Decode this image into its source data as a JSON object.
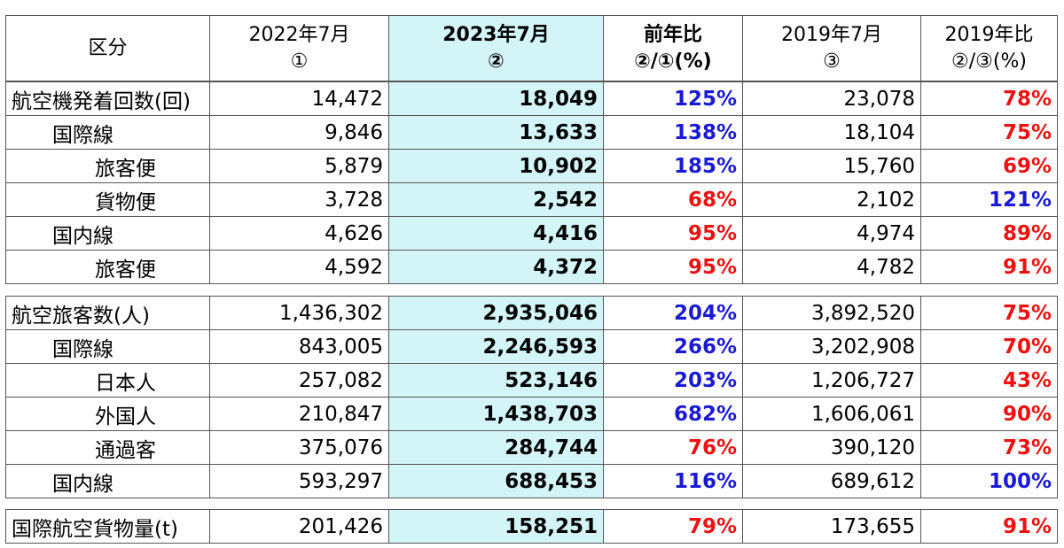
{
  "header": {
    "col_category": "区分",
    "col_2022": [
      "2022年7月",
      "①"
    ],
    "col_2023": [
      "2023年7月",
      "②"
    ],
    "col_yoy": [
      "前年比",
      "②/①(%)"
    ],
    "col_2019": [
      "2019年7月",
      "③"
    ],
    "col_vs2019": [
      "2019年比",
      "②/③(%)"
    ]
  },
  "flights": [
    {
      "label": "航空機発着回数(回)",
      "v2022": "14,472",
      "v2023": "18,049",
      "yoy": "125%",
      "yoy_color": "blue",
      "v2019": "23,078",
      "vs2019": "78%",
      "vs2019_color": "red"
    },
    {
      "label": "国際線",
      "v2022": "9,846",
      "v2023": "13,633",
      "yoy": "138%",
      "yoy_color": "blue",
      "v2019": "18,104",
      "vs2019": "75%",
      "vs2019_color": "red"
    },
    {
      "label": "旅客便",
      "v2022": "5,879",
      "v2023": "10,902",
      "yoy": "185%",
      "yoy_color": "blue",
      "v2019": "15,760",
      "vs2019": "69%",
      "vs2019_color": "red"
    },
    {
      "label": "貨物便",
      "v2022": "3,728",
      "v2023": "2,542",
      "yoy": "68%",
      "yoy_color": "red",
      "v2019": "2,102",
      "vs2019": "121%",
      "vs2019_color": "blue"
    },
    {
      "label": "国内線",
      "v2022": "4,626",
      "v2023": "4,416",
      "yoy": "95%",
      "yoy_color": "red",
      "v2019": "4,974",
      "vs2019": "89%",
      "vs2019_color": "red"
    },
    {
      "label": "旅客便",
      "v2022": "4,592",
      "v2023": "4,372",
      "yoy": "95%",
      "yoy_color": "red",
      "v2019": "4,782",
      "vs2019": "91%",
      "vs2019_color": "red"
    }
  ],
  "passengers": [
    {
      "label": "航空旅客数(人)",
      "v2022": "1,436,302",
      "v2023": "2,935,046",
      "yoy": "204%",
      "yoy_color": "blue",
      "v2019": "3,892,520",
      "vs2019": "75%",
      "vs2019_color": "red"
    },
    {
      "label": "国際線",
      "v2022": "843,005",
      "v2023": "2,246,593",
      "yoy": "266%",
      "yoy_color": "blue",
      "v2019": "3,202,908",
      "vs2019": "70%",
      "vs2019_color": "red"
    },
    {
      "label": "日本人",
      "v2022": "257,082",
      "v2023": "523,146",
      "yoy": "203%",
      "yoy_color": "blue",
      "v2019": "1,206,727",
      "vs2019": "43%",
      "vs2019_color": "red"
    },
    {
      "label": "外国人",
      "v2022": "210,847",
      "v2023": "1,438,703",
      "yoy": "682%",
      "yoy_color": "blue",
      "v2019": "1,606,061",
      "vs2019": "90%",
      "vs2019_color": "red"
    },
    {
      "label": "通過客",
      "v2022": "375,076",
      "v2023": "284,744",
      "yoy": "76%",
      "yoy_color": "red",
      "v2019": "390,120",
      "vs2019": "73%",
      "vs2019_color": "red"
    },
    {
      "label": "国内線",
      "v2022": "593,297",
      "v2023": "688,453",
      "yoy": "116%",
      "yoy_color": "blue",
      "v2019": "689,612",
      "vs2019": "100%",
      "vs2019_color": "blue"
    }
  ],
  "cargo": [
    {
      "label": "国際航空貨物量(t)",
      "v2022": "201,426",
      "v2023": "158,251",
      "yoy": "79%",
      "yoy_color": "red",
      "v2019": "173,655",
      "vs2019": "91%",
      "vs2019_color": "red"
    }
  ],
  "colors": {
    "blue": "#1a1ad6",
    "red": "#ee1111",
    "highlight": "#d3f5f8"
  }
}
